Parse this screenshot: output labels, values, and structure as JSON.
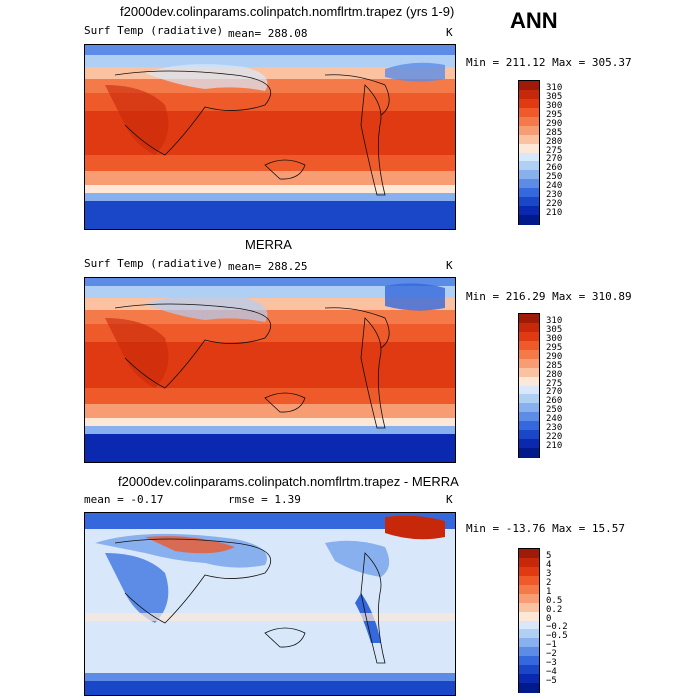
{
  "header": {
    "season": "ANN"
  },
  "panels": [
    {
      "title": "f2000dev.colinparams.colinpatch.nomflrtm.trapez (yrs 1-9)",
      "left_label": "Surf Temp (radiative)",
      "mean_label": "mean= 288.08",
      "rmse_label": "",
      "units": "K",
      "minmax": "Min = 211.12 Max = 305.37",
      "colorbar": {
        "levels": [
          "310",
          "305",
          "300",
          "295",
          "290",
          "285",
          "280",
          "275",
          "270",
          "260",
          "250",
          "240",
          "230",
          "220",
          "210"
        ],
        "colors": [
          "#a01a08",
          "#c8280a",
          "#e03a12",
          "#ee5a2a",
          "#f57a4a",
          "#f89c74",
          "#fbc2a2",
          "#fde8d8",
          "#d8e8fa",
          "#b0cff5",
          "#88b0ee",
          "#5c8ce6",
          "#3468dc",
          "#1a46c8",
          "#0a28b0",
          "#001a8c"
        ]
      }
    },
    {
      "title": "MERRA",
      "left_label": "Surf Temp (radiative)",
      "mean_label": "mean= 288.25",
      "rmse_label": "",
      "units": "K",
      "minmax": "Min = 216.29 Max = 310.89",
      "colorbar": {
        "levels": [
          "310",
          "305",
          "300",
          "295",
          "290",
          "285",
          "280",
          "275",
          "270",
          "260",
          "250",
          "240",
          "230",
          "220",
          "210"
        ],
        "colors": [
          "#a01a08",
          "#c8280a",
          "#e03a12",
          "#ee5a2a",
          "#f57a4a",
          "#f89c74",
          "#fbc2a2",
          "#fde8d8",
          "#d8e8fa",
          "#b0cff5",
          "#88b0ee",
          "#5c8ce6",
          "#3468dc",
          "#1a46c8",
          "#0a28b0",
          "#001a8c"
        ]
      }
    },
    {
      "title": "f2000dev.colinparams.colinpatch.nomflrtm.trapez - MERRA",
      "left_label": "",
      "mean_label": "mean =   -0.17",
      "rmse_label": "rmse =    1.39",
      "units": "K",
      "minmax": "Min = -13.76 Max =  15.57",
      "colorbar": {
        "levels": [
          "5",
          "4",
          "3",
          "2",
          "1",
          "0.5",
          "0.2",
          "0",
          "−0.2",
          "−0.5",
          "−1",
          "−2",
          "−3",
          "−4",
          "−5"
        ],
        "colors": [
          "#a01a08",
          "#c8280a",
          "#e03a12",
          "#ee5a2a",
          "#f57a4a",
          "#f89c74",
          "#fbc2a2",
          "#fde8d8",
          "#d8e8fa",
          "#b0cff5",
          "#88b0ee",
          "#5c8ce6",
          "#3468dc",
          "#1a46c8",
          "#0a28b0",
          "#001a8c"
        ]
      }
    }
  ],
  "chart_data": [
    {
      "type": "heatmap",
      "title": "f2000dev.colinparams.colinpatch.nomflrtm.trapez (yrs 1-9)",
      "variable": "Surf Temp (radiative)",
      "units": "K",
      "mean": 288.08,
      "min": 211.12,
      "max": 305.37,
      "contour_levels": [
        210,
        220,
        230,
        240,
        250,
        260,
        270,
        275,
        280,
        285,
        290,
        295,
        300,
        305,
        310
      ]
    },
    {
      "type": "heatmap",
      "title": "MERRA",
      "variable": "Surf Temp (radiative)",
      "units": "K",
      "mean": 288.25,
      "min": 216.29,
      "max": 310.89,
      "contour_levels": [
        210,
        220,
        230,
        240,
        250,
        260,
        270,
        275,
        280,
        285,
        290,
        295,
        300,
        305,
        310
      ]
    },
    {
      "type": "heatmap",
      "title": "f2000dev.colinparams.colinpatch.nomflrtm.trapez - MERRA",
      "units": "K",
      "mean": -0.17,
      "rmse": 1.39,
      "min": -13.76,
      "max": 15.57,
      "contour_levels": [
        -5,
        -4,
        -3,
        -2,
        -1,
        -0.5,
        -0.2,
        0,
        0.2,
        0.5,
        1,
        2,
        3,
        4,
        5
      ]
    }
  ]
}
